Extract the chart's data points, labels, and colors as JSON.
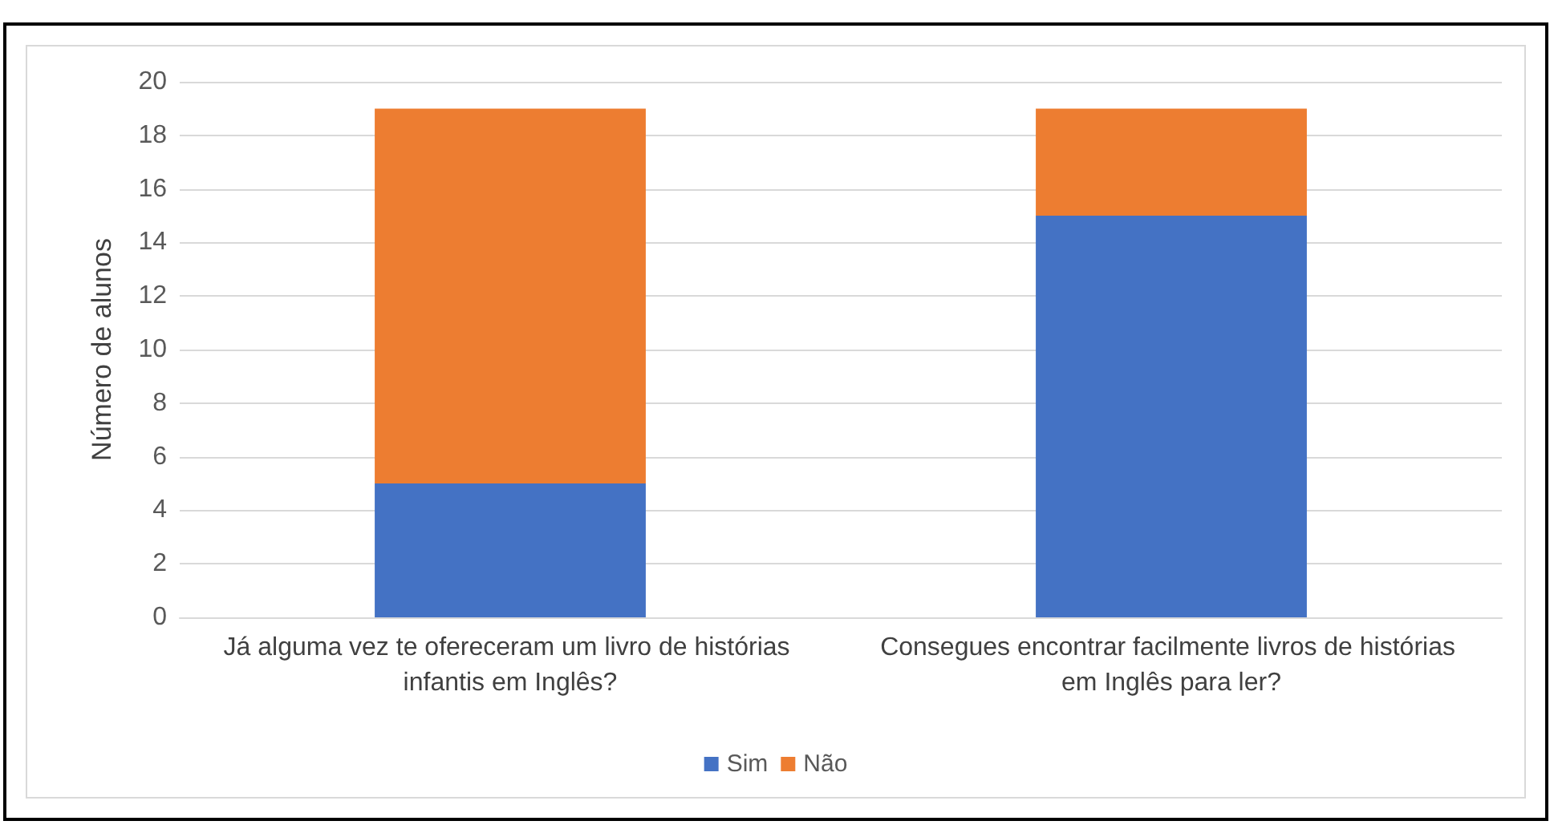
{
  "chart_data": {
    "type": "bar",
    "stacked": true,
    "ylabel": "Número de alunos",
    "categories": [
      "Já alguma vez te ofereceram um livro de histórias infantis em Inglês?",
      "Consegues encontrar facilmente livros de histórias em Inglês para ler?"
    ],
    "series": [
      {
        "name": "Sim",
        "color": "#4472c4",
        "values": [
          5,
          15
        ]
      },
      {
        "name": "Não",
        "color": "#ed7d31",
        "values": [
          14,
          4
        ]
      }
    ],
    "ylim": [
      0,
      20
    ],
    "yticks": [
      0,
      2,
      4,
      6,
      8,
      10,
      12,
      14,
      16,
      18,
      20
    ],
    "grid": "y",
    "legend": "bottom"
  }
}
